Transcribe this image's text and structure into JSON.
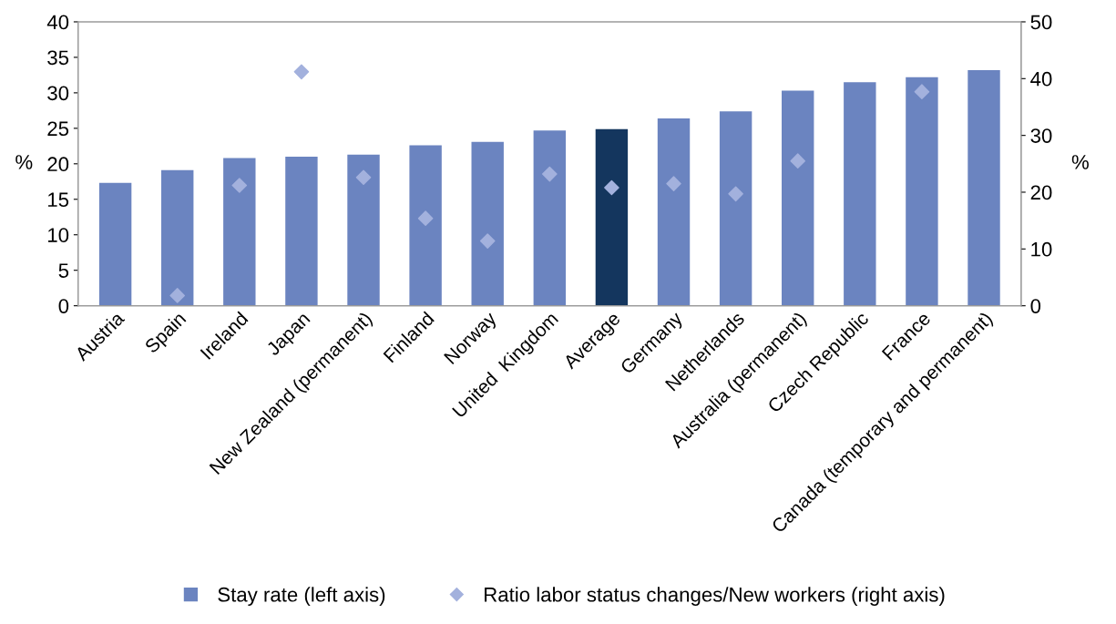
{
  "chart_data": {
    "type": "bar",
    "ylabel": "%",
    "y2label": "%",
    "categories": [
      "Austria",
      "Spain",
      "Ireland",
      "Japan",
      "New Zealand (permanent)",
      "Finland",
      "Norway",
      "United  Kingdom",
      "Average",
      "Germany",
      "Netherlands",
      "Australia (permanent)",
      "Czech Republic",
      "France",
      "Canada (temporary and permanent)"
    ],
    "series": [
      {
        "name": "Stay rate (left axis)",
        "color": "#6b84c0",
        "colors": [
          "#6b84c0",
          "#6b84c0",
          "#6b84c0",
          "#6b84c0",
          "#6b84c0",
          "#6b84c0",
          "#6b84c0",
          "#6b84c0",
          "#14365e",
          "#6b84c0",
          "#6b84c0",
          "#6b84c0",
          "#6b84c0",
          "#6b84c0",
          "#6b84c0"
        ],
        "values": [
          17.3,
          19.1,
          20.8,
          21.0,
          21.3,
          22.6,
          23.1,
          24.7,
          24.9,
          26.4,
          27.4,
          30.3,
          31.5,
          32.2,
          33.2
        ]
      },
      {
        "name": "Ratio labor status changes/New workers (right axis)",
        "type": "scatter",
        "axis": "y2",
        "marker": "diamond",
        "color": "#a3b1dd",
        "values": [
          null,
          1.8,
          21.2,
          41.2,
          22.6,
          15.4,
          11.4,
          23.2,
          20.8,
          21.5,
          19.7,
          25.5,
          null,
          37.7,
          null
        ]
      }
    ],
    "ylim": [
      0,
      40
    ],
    "yticks": [
      0,
      5,
      10,
      15,
      20,
      25,
      30,
      35,
      40
    ],
    "y2lim": [
      0,
      50
    ],
    "y2ticks": [
      0,
      10,
      20,
      30,
      40,
      50
    ],
    "grid": false,
    "legend": "bottom"
  }
}
